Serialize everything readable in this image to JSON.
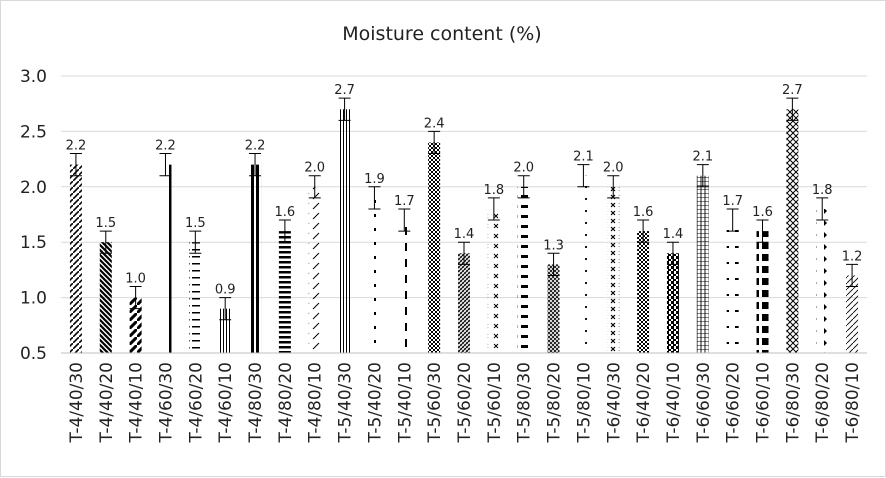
{
  "chart_data": {
    "type": "bar",
    "title": "Moisture content  (%)",
    "xlabel": "",
    "ylabel": "",
    "ylim": [
      0.5,
      3.0
    ],
    "yticks": [
      "0.5",
      "1.0",
      "1.5",
      "2.0",
      "2.5",
      "3.0"
    ],
    "grid": true,
    "legend": "none",
    "categories": [
      "T-4/40/30",
      "T-4/40/20",
      "T-4/40/10",
      "T-4/60/30",
      "T-4/60/20",
      "T-4/60/10",
      "T-4/80/30",
      "T-4/80/20",
      "T-4/80/10",
      "T-5/40/30",
      "T-5/40/20",
      "T-5/40/10",
      "T-5/60/30",
      "T-5/60/20",
      "T-5/60/10",
      "T-5/80/30",
      "T-5/80/20",
      "T-5/80/10",
      "T-6/40/30",
      "T-6/40/20",
      "T-6/40/10",
      "T-6/60/30",
      "T-6/60/20",
      "T-6/60/10",
      "T-6/80/30",
      "T-6/80/20",
      "T-6/80/10"
    ],
    "values": [
      2.2,
      1.5,
      1.0,
      2.2,
      1.5,
      0.9,
      2.2,
      1.6,
      2.0,
      2.7,
      1.9,
      1.7,
      2.4,
      1.4,
      1.8,
      2.0,
      1.3,
      2.1,
      2.0,
      1.6,
      1.4,
      2.1,
      1.7,
      1.6,
      2.7,
      1.8,
      1.2
    ],
    "data_labels": [
      "2.2",
      "1.5",
      "1.0",
      "2.2",
      "1.5",
      "0.9",
      "2.2",
      "1.6",
      "2.0",
      "2.7",
      "1.9",
      "1.7",
      "2.4",
      "1.4",
      "1.8",
      "2.0",
      "1.3",
      "2.1",
      "2.0",
      "1.6",
      "1.4",
      "2.1",
      "1.7",
      "1.6",
      "2.7",
      "1.8",
      "1.2"
    ],
    "error": 0.1,
    "colors": {
      "bar": "#000000",
      "grid": "#d9d9d9",
      "axis": "#bfbfbf",
      "text": "#222222"
    }
  }
}
